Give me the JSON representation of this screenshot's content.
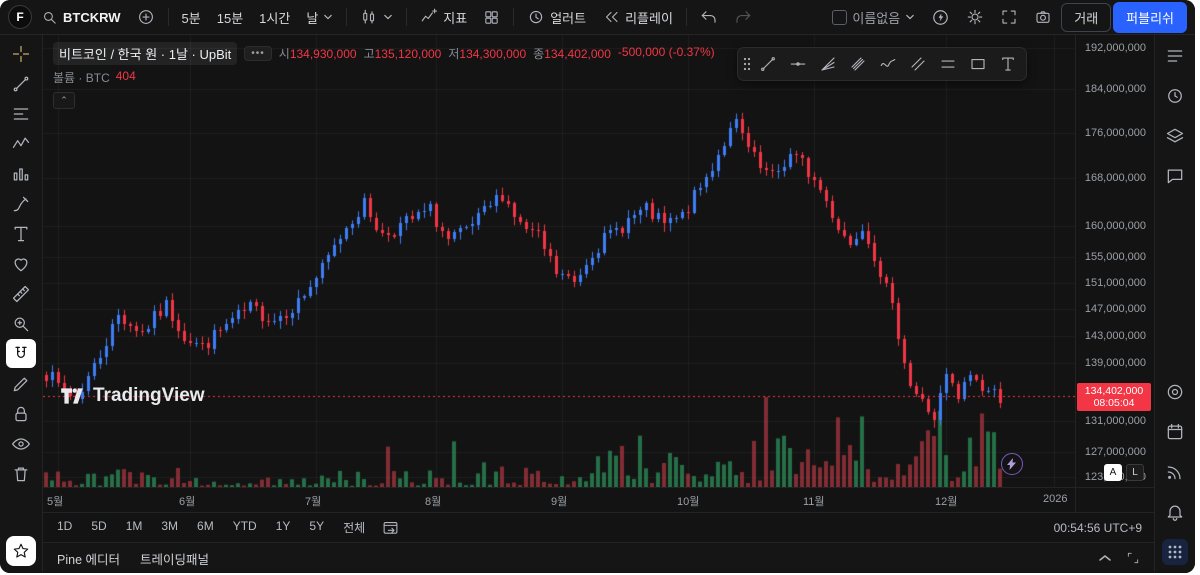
{
  "colors": {
    "accent": "#2962ff",
    "up": "#3e7ef7",
    "down": "#f23645",
    "background": "#131313",
    "text": "#d5d8dc"
  },
  "topbar": {
    "avatar_letter": "F",
    "symbol": "BTCKRW",
    "intervals": [
      "5분",
      "15분",
      "1시간"
    ],
    "interval_selected": "날",
    "indicators_label": "지표",
    "alert_label": "얼러트",
    "replay_label": "리플레이",
    "layout_name": "이름없음",
    "trade_label": "거래",
    "publish_label": "퍼블리쉬"
  },
  "legend": {
    "title": "비트코인 / 한국 원 · 1날 · UpBit",
    "more": "•••",
    "open_label": "시",
    "open": "134,930,000",
    "high_label": "고",
    "high": "135,120,000",
    "low_label": "저",
    "low": "134,300,000",
    "close_label": "종",
    "close": "134,402,000",
    "change": "-500,000 (-0.37%)",
    "volume_label": "볼륨 · BTC",
    "volume_value": "404",
    "collapse": "⌃"
  },
  "price_axis": {
    "ticks": [
      {
        "label": "192,000,000",
        "value": 192000000
      },
      {
        "label": "184,000,000",
        "value": 184000000
      },
      {
        "label": "176,000,000",
        "value": 176000000
      },
      {
        "label": "168,000,000",
        "value": 168000000
      },
      {
        "label": "160,000,000",
        "value": 160000000
      },
      {
        "label": "155,000,000",
        "value": 155000000
      },
      {
        "label": "151,000,000",
        "value": 151000000
      },
      {
        "label": "147,000,000",
        "value": 147000000
      },
      {
        "label": "143,000,000",
        "value": 143000000
      },
      {
        "label": "139,000,000",
        "value": 139000000
      },
      {
        "label": "131,000,000",
        "value": 131000000
      },
      {
        "label": "127,000,000",
        "value": 127000000
      },
      {
        "label": "123,800,000",
        "value": 123800000
      }
    ],
    "last_price_label": "134,402,000",
    "countdown": "08:05:04",
    "auto_label": "A",
    "log_label": "L"
  },
  "range_bar": {
    "ranges": [
      "1D",
      "5D",
      "1M",
      "3M",
      "6M",
      "YTD",
      "1Y",
      "5Y",
      "전체"
    ],
    "clock": "00:54:56 UTC+9"
  },
  "bottom_panel": {
    "tabs": [
      "Pine 에디터",
      "트레이딩패널"
    ]
  },
  "watermark": {
    "text": "TradingView"
  },
  "chart_data": {
    "type": "candlestick",
    "symbol": "BTCKRW",
    "interval": "1D",
    "candles": 160,
    "slots": 172,
    "seed": 7,
    "price_min": 122500000,
    "price_max": 194500000,
    "last_price": 134402000,
    "up_color": "#3e7ef7",
    "down_color": "#f23645",
    "volume_up_color": "rgba(46,148,94,0.72)",
    "volume_down_color": "rgba(224,68,80,0.55)",
    "anchors_millions": [
      [
        0,
        138.5
      ],
      [
        3,
        135.8
      ],
      [
        6,
        134.2
      ],
      [
        9,
        138.5
      ],
      [
        13,
        146
      ],
      [
        17,
        143.5
      ],
      [
        21,
        147.5
      ],
      [
        24,
        143
      ],
      [
        27,
        141.3
      ],
      [
        31,
        144.5
      ],
      [
        35,
        147
      ],
      [
        39,
        145.5
      ],
      [
        43,
        148
      ],
      [
        47,
        153
      ],
      [
        51,
        160
      ],
      [
        54,
        163.5
      ],
      [
        57,
        158.5
      ],
      [
        61,
        160.5
      ],
      [
        65,
        162.5
      ],
      [
        68,
        157.5
      ],
      [
        71,
        159
      ],
      [
        74,
        162
      ],
      [
        77,
        165.5
      ],
      [
        80,
        160
      ],
      [
        83,
        158
      ],
      [
        86,
        152.5
      ],
      [
        89,
        151
      ],
      [
        92,
        156
      ],
      [
        95,
        158.5
      ],
      [
        98,
        161
      ],
      [
        101,
        162.5
      ],
      [
        104,
        160
      ],
      [
        107,
        161.5
      ],
      [
        111,
        168
      ],
      [
        114,
        174.5
      ],
      [
        116,
        177.5
      ],
      [
        118,
        173
      ],
      [
        120,
        169.5
      ],
      [
        122,
        168
      ],
      [
        125,
        172
      ],
      [
        127,
        170.5
      ],
      [
        130,
        166
      ],
      [
        133,
        160
      ],
      [
        135,
        157
      ],
      [
        137,
        160.5
      ],
      [
        139,
        155.5
      ],
      [
        141,
        150
      ],
      [
        143,
        143.5
      ],
      [
        145,
        136
      ],
      [
        147,
        133.5
      ],
      [
        149,
        131.5
      ],
      [
        151,
        137
      ],
      [
        153,
        134
      ],
      [
        155,
        137.5
      ],
      [
        157,
        135.5
      ],
      [
        160,
        134.4
      ]
    ],
    "months": [
      {
        "label": "5월",
        "index": 2
      },
      {
        "label": "6월",
        "index": 24
      },
      {
        "label": "7월",
        "index": 45
      },
      {
        "label": "8월",
        "index": 65
      },
      {
        "label": "9월",
        "index": 86
      },
      {
        "label": "10월",
        "index": 107
      },
      {
        "label": "11월",
        "index": 128
      },
      {
        "label": "12월",
        "index": 150
      },
      {
        "label": "2026",
        "index": 168
      }
    ]
  }
}
